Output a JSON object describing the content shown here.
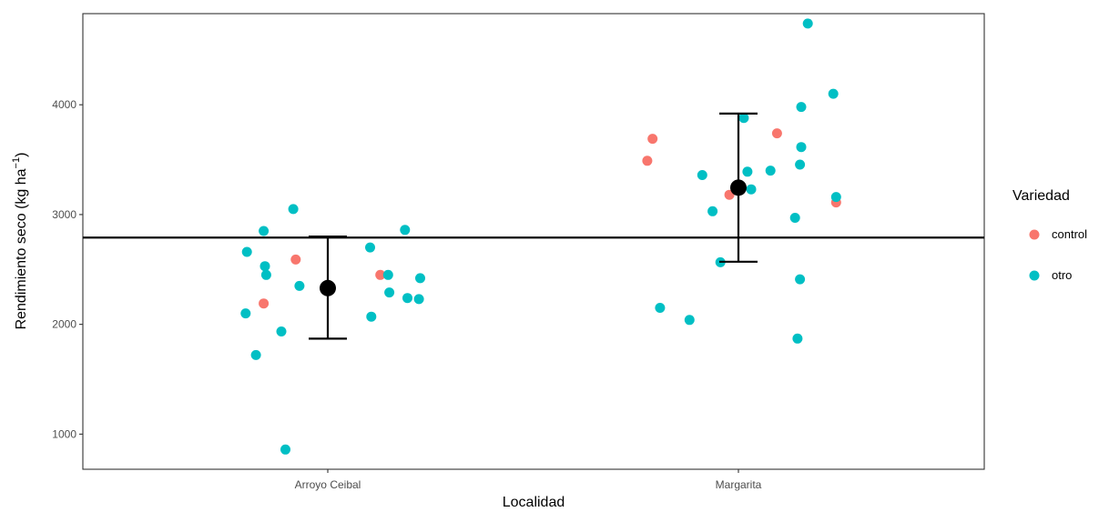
{
  "chart_data": {
    "type": "scatter",
    "xlabel": "Localidad",
    "ylabel": "Rendimiento seco (kg ha",
    "ylabel_unit_exponent": "−1",
    "ylabel_close": ")",
    "categories": [
      "Arroyo Ceibal",
      "Margarita"
    ],
    "ylim": [
      680,
      4830
    ],
    "yticks": [
      1000,
      2000,
      3000,
      4000
    ],
    "ytick_labels": [
      "1000",
      "2000",
      "3000",
      "4000"
    ],
    "grid": false,
    "legend": {
      "title": "Variedad",
      "position": "right",
      "entries": [
        "control",
        "otro"
      ]
    },
    "colors": {
      "control": "#F8766D",
      "otro": "#00BFC4",
      "summary": "#000000"
    },
    "series": [
      {
        "name": "control",
        "points": [
          {
            "x": "Arroyo Ceibal",
            "jitter": -0.078,
            "y": 2590
          },
          {
            "x": "Arroyo Ceibal",
            "jitter": -0.156,
            "y": 2190
          },
          {
            "x": "Arroyo Ceibal",
            "jitter": 0.128,
            "y": 2450
          },
          {
            "x": "Margarita",
            "jitter": -0.222,
            "y": 3490
          },
          {
            "x": "Margarita",
            "jitter": -0.209,
            "y": 3690
          },
          {
            "x": "Margarita",
            "jitter": -0.022,
            "y": 3180
          },
          {
            "x": "Margarita",
            "jitter": 0.094,
            "y": 3740
          },
          {
            "x": "Margarita",
            "jitter": 0.238,
            "y": 3110
          }
        ]
      },
      {
        "name": "otro",
        "points": [
          {
            "x": "Arroyo Ceibal",
            "jitter": -0.084,
            "y": 3050
          },
          {
            "x": "Arroyo Ceibal",
            "jitter": -0.156,
            "y": 2850
          },
          {
            "x": "Arroyo Ceibal",
            "jitter": -0.197,
            "y": 2660
          },
          {
            "x": "Arroyo Ceibal",
            "jitter": -0.153,
            "y": 2530
          },
          {
            "x": "Arroyo Ceibal",
            "jitter": -0.15,
            "y": 2450
          },
          {
            "x": "Arroyo Ceibal",
            "jitter": -0.069,
            "y": 2350
          },
          {
            "x": "Arroyo Ceibal",
            "jitter": -0.2,
            "y": 2100
          },
          {
            "x": "Arroyo Ceibal",
            "jitter": -0.113,
            "y": 1935
          },
          {
            "x": "Arroyo Ceibal",
            "jitter": -0.175,
            "y": 1720
          },
          {
            "x": "Arroyo Ceibal",
            "jitter": -0.103,
            "y": 860
          },
          {
            "x": "Arroyo Ceibal",
            "jitter": 0.106,
            "y": 2070
          },
          {
            "x": "Arroyo Ceibal",
            "jitter": 0.103,
            "y": 2700
          },
          {
            "x": "Arroyo Ceibal",
            "jitter": 0.188,
            "y": 2860
          },
          {
            "x": "Arroyo Ceibal",
            "jitter": 0.147,
            "y": 2450
          },
          {
            "x": "Arroyo Ceibal",
            "jitter": 0.15,
            "y": 2290
          },
          {
            "x": "Arroyo Ceibal",
            "jitter": 0.194,
            "y": 2240
          },
          {
            "x": "Arroyo Ceibal",
            "jitter": 0.222,
            "y": 2230
          },
          {
            "x": "Arroyo Ceibal",
            "jitter": 0.225,
            "y": 2420
          },
          {
            "x": "Margarita",
            "jitter": 0.169,
            "y": 4740
          },
          {
            "x": "Margarita",
            "jitter": 0.231,
            "y": 4100
          },
          {
            "x": "Margarita",
            "jitter": 0.153,
            "y": 3980
          },
          {
            "x": "Margarita",
            "jitter": 0.013,
            "y": 3880
          },
          {
            "x": "Margarita",
            "jitter": 0.153,
            "y": 3615
          },
          {
            "x": "Margarita",
            "jitter": 0.15,
            "y": 3455
          },
          {
            "x": "Margarita",
            "jitter": 0.078,
            "y": 3400
          },
          {
            "x": "Margarita",
            "jitter": 0.022,
            "y": 3390
          },
          {
            "x": "Margarita",
            "jitter": -0.088,
            "y": 3360
          },
          {
            "x": "Margarita",
            "jitter": 0.031,
            "y": 3230
          },
          {
            "x": "Margarita",
            "jitter": -0.063,
            "y": 3030
          },
          {
            "x": "Margarita",
            "jitter": 0.238,
            "y": 3160
          },
          {
            "x": "Margarita",
            "jitter": 0.138,
            "y": 2970
          },
          {
            "x": "Margarita",
            "jitter": -0.044,
            "y": 2565
          },
          {
            "x": "Margarita",
            "jitter": 0.15,
            "y": 2410
          },
          {
            "x": "Margarita",
            "jitter": -0.191,
            "y": 2150
          },
          {
            "x": "Margarita",
            "jitter": -0.119,
            "y": 2040
          },
          {
            "x": "Margarita",
            "jitter": 0.144,
            "y": 1870
          }
        ]
      }
    ],
    "summary": [
      {
        "x": "Arroyo Ceibal",
        "mean": 2330,
        "lower": 1870,
        "upper": 2800
      },
      {
        "x": "Margarita",
        "mean": 3245,
        "lower": 2570,
        "upper": 3920
      }
    ],
    "hline": 2790
  }
}
